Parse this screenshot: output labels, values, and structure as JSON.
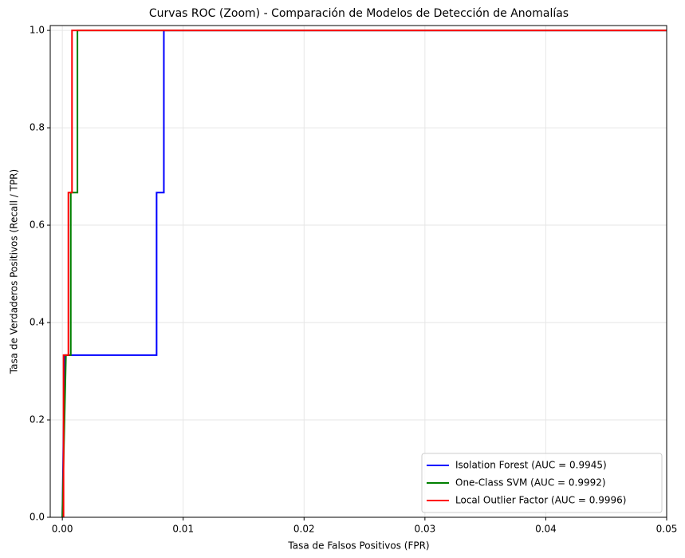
{
  "chart_data": {
    "type": "line",
    "title": "Curvas ROC (Zoom) - Comparación de Modelos de Detección de Anomalías",
    "xlabel": "Tasa de Falsos Positivos (FPR)",
    "ylabel": "Tasa de Verdaderos Positivos (Recall / TPR)",
    "xlim": [
      -0.001,
      0.05
    ],
    "ylim": [
      0,
      1.01
    ],
    "xticks": [
      {
        "value": 0,
        "label": "0.00"
      },
      0.01,
      0.02,
      0.03,
      0.04,
      0.05
    ],
    "yticks": [
      {
        "value": 0,
        "label": "0.0"
      },
      0.2,
      0.4,
      0.6,
      0.8,
      {
        "value": 1,
        "label": "1.0"
      }
    ],
    "grid": true,
    "legend": "lower right",
    "series": [
      {
        "name": "Isolation Forest (AUC = 0.9945)",
        "color": "#0000ff",
        "x": [
          0,
          0.0002,
          0.0078,
          0.0078,
          0.0084,
          0.0084,
          0.05
        ],
        "values": [
          0,
          0.333,
          0.333,
          0.667,
          0.667,
          1,
          1
        ]
      },
      {
        "name": "One-Class SVM (AUC = 0.9992)",
        "color": "#008000",
        "x": [
          0,
          0.0003,
          0.0007,
          0.0007,
          0.00125,
          0.00125,
          0.05
        ],
        "values": [
          0,
          0.333,
          0.333,
          0.667,
          0.667,
          1,
          1
        ]
      },
      {
        "name": "Local Outlier Factor (AUC = 0.9996)",
        "color": "#ff0000",
        "x": [
          0.0001,
          0.0001,
          0.0005,
          0.0005,
          0.0008,
          0.0008,
          0.05
        ],
        "values": [
          0,
          0.333,
          0.333,
          0.667,
          0.667,
          1,
          1
        ]
      }
    ]
  }
}
